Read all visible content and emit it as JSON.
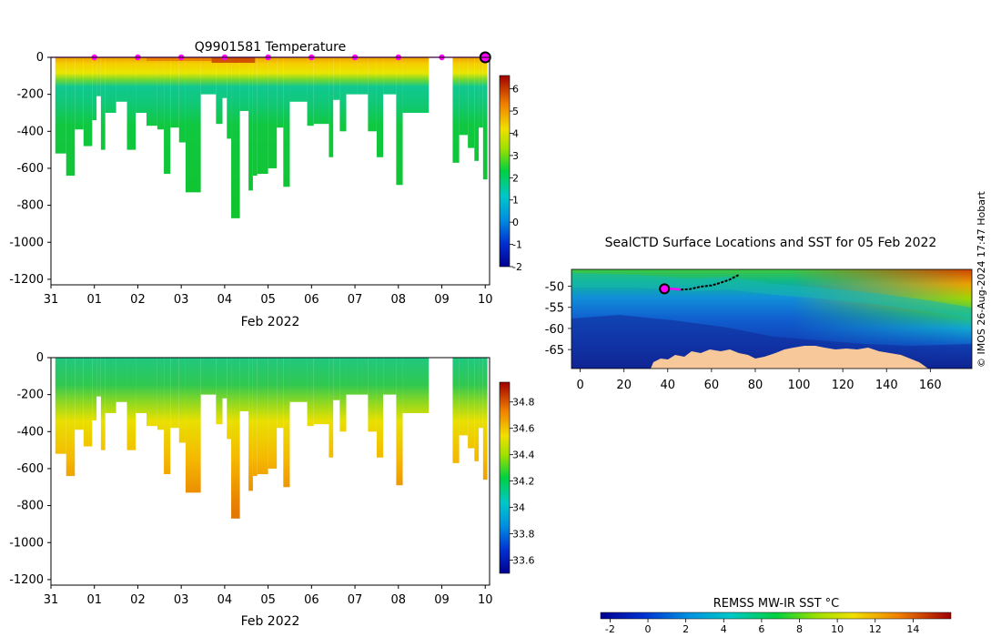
{
  "credit": "© IMOS 26-Aug-2024 17:47 Hobart",
  "chart_data": [
    {
      "type": "heatmap",
      "id": "temperature",
      "title": "Q9901581  Temperature",
      "xlabel": "Feb 2022",
      "ylabel": "",
      "x_ticks": [
        {
          "v": 0,
          "l": "31"
        },
        {
          "v": 1,
          "l": "01"
        },
        {
          "v": 2,
          "l": "02"
        },
        {
          "v": 3,
          "l": "03"
        },
        {
          "v": 4,
          "l": "04"
        },
        {
          "v": 5,
          "l": "05"
        },
        {
          "v": 6,
          "l": "06"
        },
        {
          "v": 7,
          "l": "07"
        },
        {
          "v": 8,
          "l": "08"
        },
        {
          "v": 9,
          "l": "09"
        },
        {
          "v": 10,
          "l": "10"
        }
      ],
      "xlim": [
        0,
        10.1
      ],
      "y_ticks": [
        0,
        -200,
        -400,
        -600,
        -800,
        -1000,
        -1200
      ],
      "ylim": [
        -1230,
        0
      ],
      "colorbar": {
        "min": -2,
        "max": 6.6,
        "ticks": [
          -2,
          -1,
          0,
          1,
          2,
          3,
          4,
          5,
          6
        ]
      },
      "surface_markers_days": [
        1,
        2,
        3,
        4,
        5,
        6,
        7,
        8,
        9
      ],
      "current_marker_day": 10.0,
      "profiles": [
        {
          "t0": 0.1,
          "t1": 0.35,
          "d": 520
        },
        {
          "t0": 0.35,
          "t1": 0.55,
          "d": 640
        },
        {
          "t0": 0.55,
          "t1": 0.75,
          "d": 390
        },
        {
          "t0": 0.75,
          "t1": 0.95,
          "d": 480
        },
        {
          "t0": 0.95,
          "t1": 1.05,
          "d": 340
        },
        {
          "t0": 1.05,
          "t1": 1.15,
          "d": 210
        },
        {
          "t0": 1.15,
          "t1": 1.25,
          "d": 500
        },
        {
          "t0": 1.25,
          "t1": 1.5,
          "d": 300
        },
        {
          "t0": 1.5,
          "t1": 1.75,
          "d": 240
        },
        {
          "t0": 1.75,
          "t1": 1.95,
          "d": 500
        },
        {
          "t0": 1.95,
          "t1": 2.2,
          "d": 300
        },
        {
          "t0": 2.2,
          "t1": 2.45,
          "d": 370
        },
        {
          "t0": 2.45,
          "t1": 2.6,
          "d": 390
        },
        {
          "t0": 2.6,
          "t1": 2.75,
          "d": 630
        },
        {
          "t0": 2.75,
          "t1": 2.95,
          "d": 380
        },
        {
          "t0": 2.95,
          "t1": 3.1,
          "d": 460
        },
        {
          "t0": 3.1,
          "t1": 3.45,
          "d": 730
        },
        {
          "t0": 3.45,
          "t1": 3.8,
          "d": 200
        },
        {
          "t0": 3.8,
          "t1": 3.95,
          "d": 360
        },
        {
          "t0": 3.95,
          "t1": 4.05,
          "d": 220
        },
        {
          "t0": 4.05,
          "t1": 4.15,
          "d": 440
        },
        {
          "t0": 4.15,
          "t1": 4.35,
          "d": 870
        },
        {
          "t0": 4.35,
          "t1": 4.55,
          "d": 290
        },
        {
          "t0": 4.55,
          "t1": 4.65,
          "d": 720
        },
        {
          "t0": 4.65,
          "t1": 4.75,
          "d": 640
        },
        {
          "t0": 4.75,
          "t1": 5.0,
          "d": 630
        },
        {
          "t0": 5.0,
          "t1": 5.2,
          "d": 600
        },
        {
          "t0": 5.2,
          "t1": 5.35,
          "d": 380
        },
        {
          "t0": 5.35,
          "t1": 5.5,
          "d": 700
        },
        {
          "t0": 5.5,
          "t1": 5.9,
          "d": 240
        },
        {
          "t0": 5.9,
          "t1": 6.05,
          "d": 370
        },
        {
          "t0": 6.05,
          "t1": 6.4,
          "d": 360
        },
        {
          "t0": 6.4,
          "t1": 6.5,
          "d": 540
        },
        {
          "t0": 6.5,
          "t1": 6.65,
          "d": 230
        },
        {
          "t0": 6.65,
          "t1": 6.8,
          "d": 400
        },
        {
          "t0": 6.8,
          "t1": 7.05,
          "d": 200
        },
        {
          "t0": 7.05,
          "t1": 7.3,
          "d": 200
        },
        {
          "t0": 7.3,
          "t1": 7.5,
          "d": 400
        },
        {
          "t0": 7.5,
          "t1": 7.65,
          "d": 540
        },
        {
          "t0": 7.65,
          "t1": 7.95,
          "d": 200
        },
        {
          "t0": 7.95,
          "t1": 8.1,
          "d": 690
        },
        {
          "t0": 8.1,
          "t1": 8.7,
          "d": 300
        },
        {
          "t0": 9.25,
          "t1": 9.4,
          "d": 570
        },
        {
          "t0": 9.4,
          "t1": 9.6,
          "d": 420
        },
        {
          "t0": 9.6,
          "t1": 9.75,
          "d": 490
        },
        {
          "t0": 9.75,
          "t1": 9.85,
          "d": 560
        },
        {
          "t0": 9.85,
          "t1": 9.95,
          "d": 380
        },
        {
          "t0": 9.95,
          "t1": 10.05,
          "d": 660
        }
      ]
    },
    {
      "type": "heatmap",
      "id": "salinity",
      "title": "",
      "xlabel": "Feb 2022",
      "ylabel": "",
      "x_ticks": [
        {
          "v": 0,
          "l": "31"
        },
        {
          "v": 1,
          "l": "01"
        },
        {
          "v": 2,
          "l": "02"
        },
        {
          "v": 3,
          "l": "03"
        },
        {
          "v": 4,
          "l": "04"
        },
        {
          "v": 5,
          "l": "05"
        },
        {
          "v": 6,
          "l": "06"
        },
        {
          "v": 7,
          "l": "07"
        },
        {
          "v": 8,
          "l": "08"
        },
        {
          "v": 9,
          "l": "09"
        },
        {
          "v": 10,
          "l": "10"
        }
      ],
      "xlim": [
        0,
        10.1
      ],
      "y_ticks": [
        0,
        -200,
        -400,
        -600,
        -800,
        -1000,
        -1200
      ],
      "ylim": [
        -1230,
        0
      ],
      "colorbar": {
        "min": 33.5,
        "max": 34.95,
        "ticks": [
          33.6,
          33.8,
          34,
          34.2,
          34.4,
          34.6,
          34.8
        ],
        "tick_labels": [
          "33.6",
          "33.8",
          "34",
          "34.2",
          "34.4",
          "34.6",
          "34.8"
        ]
      }
    },
    {
      "type": "heatmap",
      "id": "sst_map",
      "title": "SealCTD Surface Locations and SST for 05 Feb 2022",
      "xlabel": "",
      "ylabel": "",
      "x_ticks": [
        0,
        20,
        40,
        60,
        80,
        100,
        120,
        140,
        160
      ],
      "xlim": [
        -4,
        179
      ],
      "y_ticks": [
        -50,
        -55,
        -60,
        -65
      ],
      "ylim": [
        -69.5,
        -46
      ],
      "colorbar": {
        "title": "REMSS MW-IR SST °C",
        "min": -2.5,
        "max": 16,
        "ticks": [
          -2,
          0,
          2,
          4,
          6,
          8,
          10,
          12,
          14
        ]
      },
      "track_lon_lat": [
        [
          38.5,
          -50.6
        ],
        [
          42,
          -50.6
        ],
        [
          46,
          -50.8
        ],
        [
          50,
          -50.7
        ],
        [
          55,
          -50.1
        ],
        [
          60,
          -49.8
        ],
        [
          64,
          -49.2
        ],
        [
          68,
          -48.5
        ],
        [
          71,
          -47.7
        ],
        [
          72.5,
          -47.3
        ]
      ],
      "recent_track_lon_lat": [
        [
          38.5,
          -50.6
        ],
        [
          42,
          -50.6
        ],
        [
          46,
          -50.8
        ]
      ],
      "current_position_lon_lat": [
        38.5,
        -50.6
      ]
    }
  ]
}
